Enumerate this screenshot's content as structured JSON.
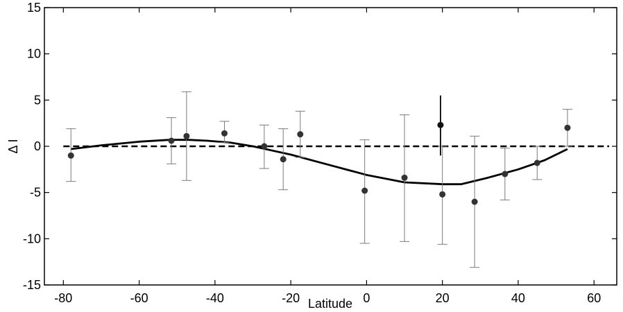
{
  "chart_data": {
    "type": "scatter",
    "xlabel": "Latitude",
    "ylabel": "Δ I",
    "xlim": [
      -85,
      66
    ],
    "ylim": [
      -15,
      15
    ],
    "xticks": [
      -80,
      -60,
      -40,
      -20,
      0,
      20,
      40,
      60
    ],
    "yticks": [
      -15,
      -10,
      -5,
      0,
      5,
      10,
      15
    ],
    "grid": false,
    "legend": "none",
    "series": [
      {
        "type": "scatter-errorbar",
        "color": "#333333",
        "errorbar_color": "#7a7a7a",
        "points": [
          {
            "x": -78,
            "y": -1.0,
            "lo": -3.8,
            "hi": 1.9
          },
          {
            "x": -51.5,
            "y": 0.6,
            "lo": -1.9,
            "hi": 3.1
          },
          {
            "x": -47.5,
            "y": 1.1,
            "lo": -3.7,
            "hi": 5.9
          },
          {
            "x": -37.5,
            "y": 1.4,
            "lo": 0.4,
            "hi": 2.7
          },
          {
            "x": -27,
            "y": 0.0,
            "lo": -2.4,
            "hi": 2.3
          },
          {
            "x": -22,
            "y": -1.4,
            "lo": -4.7,
            "hi": 1.9
          },
          {
            "x": -17.5,
            "y": 1.3,
            "lo": -1.2,
            "hi": 3.8
          },
          {
            "x": -0.5,
            "y": -4.8,
            "lo": -10.5,
            "hi": 0.7
          },
          {
            "x": 10,
            "y": -3.4,
            "lo": -10.3,
            "hi": 3.4
          },
          {
            "x": 20,
            "y": -5.2,
            "lo": -10.6,
            "hi": 0.0
          },
          {
            "x": 28.5,
            "y": -6.0,
            "lo": -13.1,
            "hi": 1.1
          },
          {
            "x": 36.5,
            "y": -3.0,
            "lo": -5.8,
            "hi": -0.2
          },
          {
            "x": 45,
            "y": -1.8,
            "lo": -3.6,
            "hi": 0.0
          },
          {
            "x": 53,
            "y": 2.0,
            "lo": 0.0,
            "hi": 4.0
          }
        ]
      },
      {
        "type": "scatter-errorbar",
        "color": "#111111",
        "errorbar_color": "#000000",
        "points": [
          {
            "x": 19.5,
            "y": 2.3,
            "lo": -1.0,
            "hi": 5.5
          }
        ]
      },
      {
        "type": "line",
        "style": "solid",
        "color": "#000000",
        "x": [
          -78,
          -70,
          -60,
          -52,
          -47,
          -42,
          -36,
          -30,
          -20,
          -10,
          0,
          10,
          20,
          25,
          32,
          40,
          47,
          53
        ],
        "y": [
          -0.3,
          0.1,
          0.5,
          0.7,
          0.7,
          0.6,
          0.4,
          0.0,
          -0.9,
          -2.0,
          -3.1,
          -3.9,
          -4.1,
          -4.1,
          -3.4,
          -2.5,
          -1.5,
          -0.3
        ]
      },
      {
        "type": "line",
        "style": "dashed",
        "color": "#000000",
        "x": [
          -80,
          64
        ],
        "y": [
          0,
          0
        ]
      }
    ]
  }
}
